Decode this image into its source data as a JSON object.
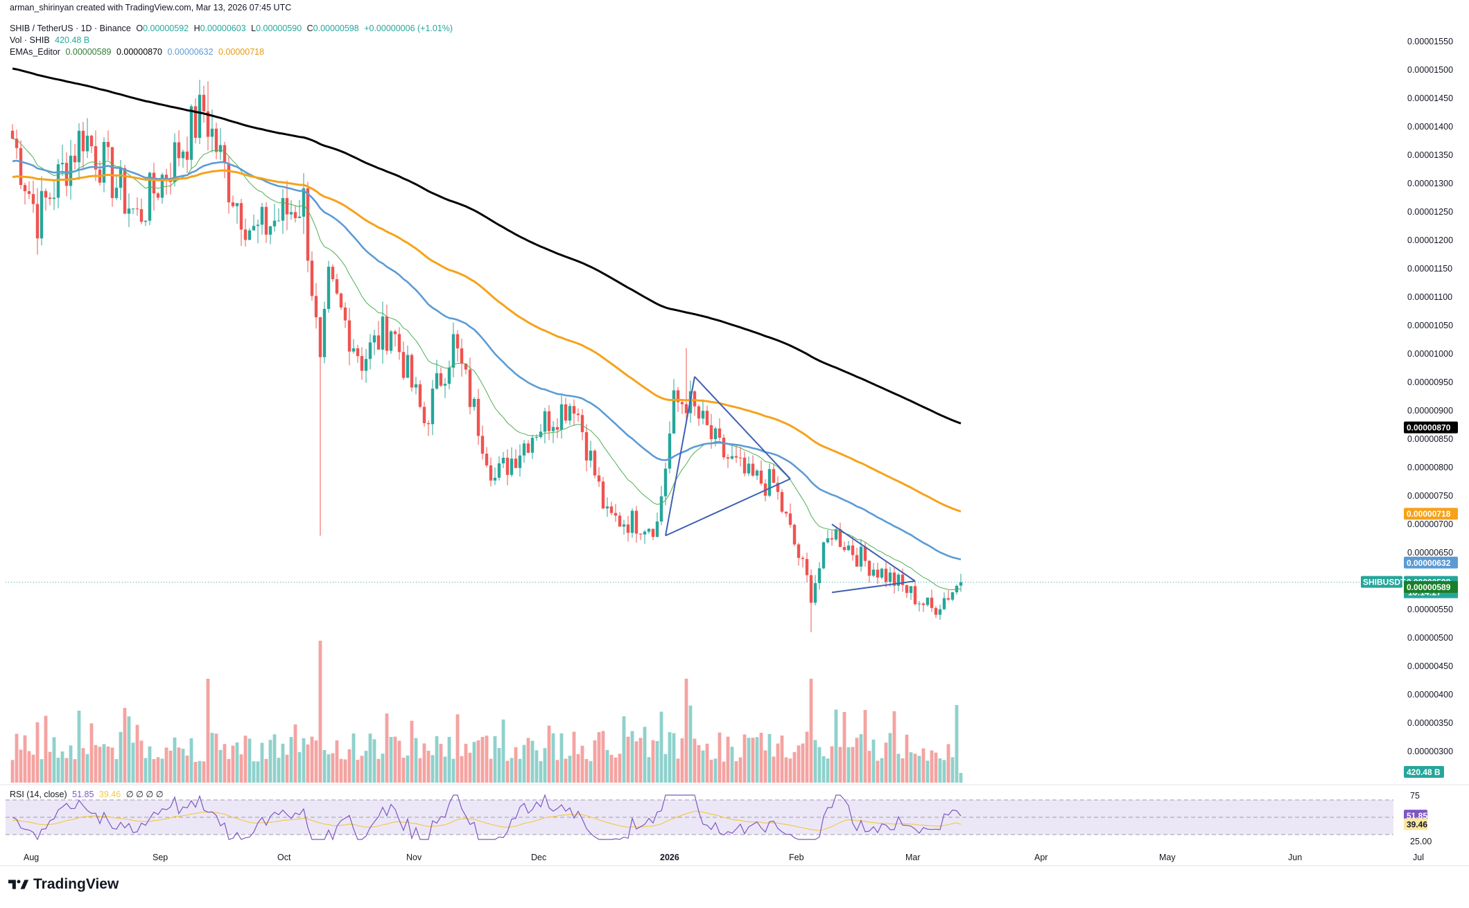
{
  "header": {
    "created_by": "arman_shirinyan created with TradingView.com, Mar 13, 2026 07:45 UTC",
    "symbol": "SHIB / TetherUS · 1D · Binance",
    "open_label": "O",
    "open": "0.00000592",
    "high_label": "H",
    "high": "0.00000603",
    "low_label": "L",
    "low": "0.00000590",
    "close_label": "C",
    "close": "0.00000598",
    "change": "+0.00000006 (+1.01%)",
    "vol_label": "Vol · SHIB",
    "vol_value": "420.48 B",
    "ema_label": "EMAs_Editor",
    "ema_values": [
      "0.00000589",
      "0.00000870",
      "0.00000632",
      "0.00000718"
    ],
    "rsi_label": "RSI (14, close)",
    "rsi_value": "51.85",
    "rsi_ma": "39.46",
    "rsi_rest": "∅ ∅ ∅ ∅"
  },
  "brand": {
    "name": "TradingView"
  },
  "colors": {
    "up": "#26a69a",
    "down": "#ef5350",
    "vol_up": "#8fd1cc",
    "vol_down": "#f4a3a1",
    "ema20": "#4caf50",
    "ema50": "#5b9bd5",
    "ema100": "#f6a21a",
    "ema200": "#000000",
    "rsi_line": "#7e57c2",
    "rsi_ma": "#f2c94c",
    "rsi_band": "#ece7f7",
    "trendline": "#3f5fb5"
  },
  "chart_data": {
    "type": "candlestick",
    "title": "SHIB / TetherUS · 1D · Binance",
    "y_ticks": [
      "0.00001550",
      "0.00001500",
      "0.00001450",
      "0.00001400",
      "0.00001350",
      "0.00001300",
      "0.00001250",
      "0.00001200",
      "0.00001150",
      "0.00001100",
      "0.00001050",
      "0.00001000",
      "0.00000950",
      "0.00000900",
      "0.00000850",
      "0.00000800",
      "0.00000750",
      "0.00000700",
      "0.00000650",
      "0.00000600",
      "0.00000550",
      "0.00000500",
      "0.00000450",
      "0.00000400",
      "0.00000350",
      "0.00000300"
    ],
    "x_ticks": [
      "Aug",
      "Sep",
      "Oct",
      "Nov",
      "Dec",
      "2026",
      "Feb",
      "Mar",
      "Apr",
      "May",
      "Jun",
      "Jul"
    ],
    "price_key_points": [
      {
        "date": "2025-07-28",
        "price": 1.38e-05
      },
      {
        "date": "2025-08-03",
        "price": 1.24e-05
      },
      {
        "date": "2025-08-14",
        "price": 1.39e-05
      },
      {
        "date": "2025-08-27",
        "price": 1.24e-05
      },
      {
        "date": "2025-09-12",
        "price": 1.43e-05
      },
      {
        "date": "2025-09-18",
        "price": 1.3e-05
      },
      {
        "date": "2025-09-24",
        "price": 1.21e-05
      },
      {
        "date": "2025-10-06",
        "price": 1.27e-05
      },
      {
        "date": "2025-10-10",
        "price": 9.7e-06
      },
      {
        "date": "2025-10-12",
        "price": 1.12e-05
      },
      {
        "date": "2025-10-20",
        "price": 9.9e-06
      },
      {
        "date": "2025-10-27",
        "price": 1.05e-05
      },
      {
        "date": "2025-11-04",
        "price": 8.8e-06
      },
      {
        "date": "2025-11-11",
        "price": 1.02e-05
      },
      {
        "date": "2025-11-21",
        "price": 7.8e-06
      },
      {
        "date": "2025-12-01",
        "price": 8.7e-06
      },
      {
        "date": "2025-12-10",
        "price": 9.2e-06
      },
      {
        "date": "2025-12-18",
        "price": 7.1e-06
      },
      {
        "date": "2025-12-30",
        "price": 7e-06
      },
      {
        "date": "2026-01-03",
        "price": 9.1e-06
      },
      {
        "date": "2026-01-06",
        "price": 9.2e-06
      },
      {
        "date": "2026-01-14",
        "price": 8.3e-06
      },
      {
        "date": "2026-01-21",
        "price": 7.8e-06
      },
      {
        "date": "2026-01-27",
        "price": 7.7e-06
      },
      {
        "date": "2026-02-05",
        "price": 5.8e-06
      },
      {
        "date": "2026-02-10",
        "price": 6.9e-06
      },
      {
        "date": "2026-02-17",
        "price": 6.4e-06
      },
      {
        "date": "2026-02-25",
        "price": 6e-06
      },
      {
        "date": "2026-03-06",
        "price": 5.5e-06
      },
      {
        "date": "2026-03-13",
        "price": 5.98e-06
      }
    ],
    "spikes": [
      {
        "date": "2025-09-13",
        "high": 1.48e-05
      },
      {
        "date": "2025-10-10",
        "low": 6.8e-06
      },
      {
        "date": "2026-01-06",
        "high": 1.01e-05
      },
      {
        "date": "2026-02-05",
        "low": 5.1e-06
      }
    ],
    "emas": [
      {
        "name": "EMA 20",
        "last": 5.89e-06
      },
      {
        "name": "EMA 200",
        "last": 8.7e-06
      },
      {
        "name": "EMA 50",
        "last": 6.32e-06
      },
      {
        "name": "EMA 100",
        "last": 7.18e-06
      }
    ],
    "trendlines": [
      {
        "from": [
          "2026-01-01",
          6.8e-06
        ],
        "to": [
          "2026-01-08",
          9.6e-06
        ]
      },
      {
        "from": [
          "2026-01-08",
          9.6e-06
        ],
        "to": [
          "2026-01-31",
          7.8e-06
        ]
      },
      {
        "from": [
          "2026-01-01",
          6.8e-06
        ],
        "to": [
          "2026-01-31",
          7.8e-06
        ]
      },
      {
        "from": [
          "2026-02-10",
          7e-06
        ],
        "to": [
          "2026-03-02",
          6e-06
        ]
      },
      {
        "from": [
          "2026-02-10",
          5.8e-06
        ],
        "to": [
          "2026-03-02",
          6e-06
        ]
      }
    ],
    "last_price": {
      "symbol": "SHIBUSDT",
      "value": "0.00000598",
      "countdown": "16:14:27"
    },
    "volume_last": "420.48 B",
    "rsi": {
      "upper": 75,
      "lower": 25,
      "upper_label": "75",
      "lower_label": "25.00",
      "value": 51.85,
      "ma": 39.46
    },
    "grid": false
  }
}
